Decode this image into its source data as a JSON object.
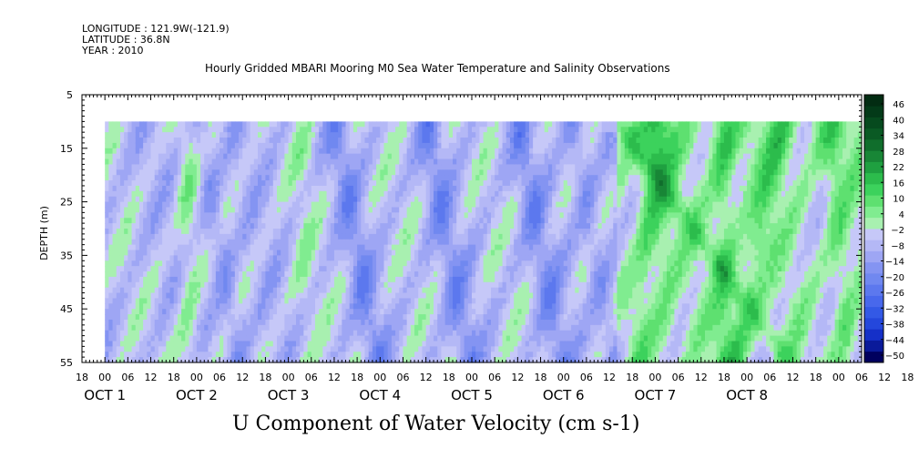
{
  "header": {
    "longitude": "LONGITUDE : 121.9W(-121.9)",
    "latitude": "LATITUDE : 36.8N",
    "year": "YEAR : 2010"
  },
  "chart_data": {
    "type": "heatmap",
    "title": "Hourly Gridded MBARI Mooring M0 Sea Water Temperature and Salinity Observations",
    "xlabel": "U Component of Water Velocity (cm s-1)",
    "ylabel": "DEPTH (m)",
    "x_unit": "hours since 2010-09-30 18:00",
    "xlim": [
      0,
      204
    ],
    "data_start_hour": 6,
    "data_end_hour": 204,
    "ylim": [
      5,
      55
    ],
    "y_inverted": true,
    "data_top_depth": 10,
    "y_ticks": [
      5,
      15,
      25,
      35,
      45,
      55
    ],
    "x_hour_ticks": [
      "18",
      "00",
      "06",
      "12",
      "18",
      "00",
      "06",
      "12",
      "18",
      "00",
      "06",
      "12",
      "18",
      "00",
      "06",
      "12",
      "18",
      "00",
      "06",
      "12",
      "18",
      "00",
      "06",
      "12",
      "18",
      "00",
      "06",
      "12",
      "18",
      "00",
      "06",
      "12",
      "18",
      "00",
      "06",
      "12",
      "18"
    ],
    "date_labels": [
      {
        "text": "OCT  1",
        "hour": 6
      },
      {
        "text": "OCT  2",
        "hour": 30
      },
      {
        "text": "OCT  3",
        "hour": 54
      },
      {
        "text": "OCT  4",
        "hour": 78
      },
      {
        "text": "OCT  5",
        "hour": 102
      },
      {
        "text": "OCT  6",
        "hour": 126
      },
      {
        "text": "OCT  7",
        "hour": 150
      },
      {
        "text": "OCT  8",
        "hour": 174
      }
    ],
    "colorbar": {
      "levels": [
        -50,
        -44,
        -38,
        -32,
        -26,
        -20,
        -14,
        -8,
        -2,
        4,
        10,
        16,
        22,
        28,
        34,
        40,
        46
      ],
      "labels": [
        "46",
        "40",
        "34",
        "28",
        "22",
        "16",
        "10",
        "4",
        "−2",
        "−8",
        "−14",
        "−20",
        "−26",
        "−32",
        "−38",
        "−44",
        "−50"
      ],
      "colors": [
        "#00005e",
        "#0a1a9a",
        "#1530c8",
        "#2447dc",
        "#3359e6",
        "#4868ec",
        "#5c78ee",
        "#7088f0",
        "#8494f2",
        "#9ea6f4",
        "#b4b8f6",
        "#c6c8f8",
        "#a8f0b0",
        "#80ec90",
        "#5ee070",
        "#3cd25c",
        "#2cbc4c",
        "#1fa040",
        "#188636",
        "#106e2c",
        "#0a5a24",
        "#064a1e",
        "#033a18",
        "#022c12"
      ]
    },
    "field_description": "values in cm s-1; blue negative, green positive; mostly -8 to -2 with bands down to about -20 and positive patches up to about 16 on Oct 6-8"
  }
}
